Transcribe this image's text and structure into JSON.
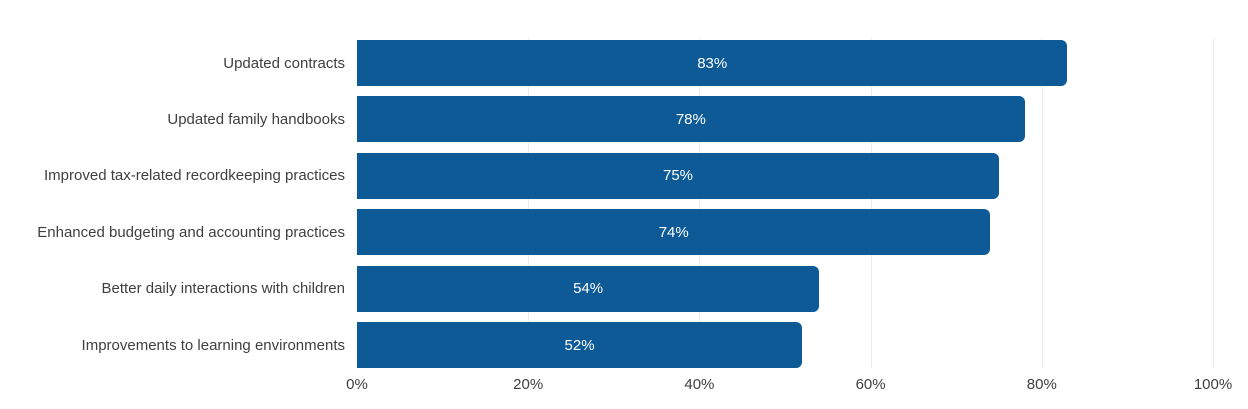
{
  "chart_style": {
    "background_color": "#ffffff",
    "bar_color": "#0d5a96",
    "grid_color": "#ebebeb",
    "axis_text_color": "#3f3f3f",
    "value_text_color": "#ffffff"
  },
  "chart_data": {
    "type": "bar",
    "orientation": "horizontal",
    "categories": [
      "Updated contracts",
      "Updated family handbooks",
      "Improved tax-related recordkeeping practices",
      "Enhanced budgeting and accounting practices",
      "Better daily interactions with children",
      "Improvements to learning environments"
    ],
    "values": [
      83,
      78,
      75,
      74,
      54,
      52
    ],
    "value_labels": [
      "83%",
      "78%",
      "75%",
      "74%",
      "54%",
      "52%"
    ],
    "xlim": [
      0,
      100
    ],
    "x_ticks": [
      {
        "value": 0,
        "label": "0%"
      },
      {
        "value": 20,
        "label": "20%"
      },
      {
        "value": 40,
        "label": "40%"
      },
      {
        "value": 60,
        "label": "60%"
      },
      {
        "value": 80,
        "label": "80%"
      },
      {
        "value": 100,
        "label": "100%"
      }
    ],
    "grid": "vertical",
    "legend": "none",
    "value_labels_position": "center-inside"
  }
}
